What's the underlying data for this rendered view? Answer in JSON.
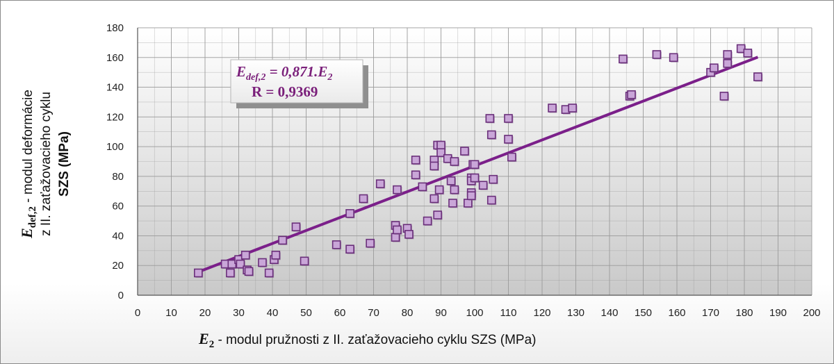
{
  "chart_data": {
    "type": "scatter",
    "x_ticks": [
      "0",
      "10",
      "20",
      "30",
      "40",
      "50",
      "60",
      "70",
      "80",
      "90",
      "100",
      "110",
      "120",
      "130",
      "140",
      "150",
      "160",
      "170",
      "180",
      "190",
      "200"
    ],
    "y_ticks": [
      "0",
      "20",
      "40",
      "60",
      "80",
      "100",
      "120",
      "140",
      "160",
      "180"
    ],
    "xlim": [
      0,
      200
    ],
    "ylim": [
      0,
      180
    ],
    "grid": true,
    "xlabel": {
      "symbol": "E",
      "sub": "2",
      "rest": " - modul  pružnosti z II. zaťažovacieho cyklu SZS (MPa)"
    },
    "ylabel": {
      "symbol": "E",
      "sub": "def,2",
      "line1_rest": " - modul deformácie",
      "line2": "z II. zaťažovacieho cyklu",
      "line3": "SZS   (MPa)"
    },
    "annotation": {
      "eq_symbol": "E",
      "eq_sub": "def,2",
      "eq_rest": " = 0,871.E",
      "eq_sub2": "2",
      "r_text": "R = 0,9369"
    },
    "trendline": {
      "slope": 0.871,
      "x_start": 18,
      "x_end": 184
    },
    "colors": {
      "marker_fill": "#c9a6d8",
      "marker_stroke": "#6a2f7a",
      "trendline": "#7b1f8a",
      "grid": "#9a9a9a",
      "annotation_text": "#7a1f7a"
    },
    "points": [
      [
        18,
        15
      ],
      [
        26,
        21
      ],
      [
        27.5,
        15
      ],
      [
        28,
        21
      ],
      [
        30,
        24
      ],
      [
        30.5,
        21
      ],
      [
        32,
        27
      ],
      [
        32.5,
        17
      ],
      [
        33,
        16
      ],
      [
        37,
        22
      ],
      [
        39,
        15
      ],
      [
        40.5,
        24
      ],
      [
        41,
        27
      ],
      [
        43,
        37
      ],
      [
        47,
        46
      ],
      [
        49.5,
        23
      ],
      [
        59,
        34
      ],
      [
        63,
        31
      ],
      [
        63,
        55
      ],
      [
        67,
        65
      ],
      [
        69,
        35
      ],
      [
        72,
        75
      ],
      [
        76.5,
        47
      ],
      [
        76.5,
        39
      ],
      [
        77,
        71
      ],
      [
        77,
        44
      ],
      [
        80,
        45
      ],
      [
        80.5,
        41
      ],
      [
        82.5,
        91
      ],
      [
        82.5,
        81
      ],
      [
        84.5,
        73
      ],
      [
        86,
        50
      ],
      [
        88,
        91
      ],
      [
        88,
        87
      ],
      [
        88,
        65
      ],
      [
        89,
        101
      ],
      [
        89,
        54
      ],
      [
        89.5,
        71
      ],
      [
        90,
        101
      ],
      [
        90,
        96
      ],
      [
        92,
        92
      ],
      [
        93,
        77
      ],
      [
        93.5,
        62
      ],
      [
        94,
        71
      ],
      [
        94,
        90
      ],
      [
        97,
        97
      ],
      [
        98,
        62
      ],
      [
        99,
        69
      ],
      [
        99,
        67
      ],
      [
        99,
        79
      ],
      [
        99,
        77
      ],
      [
        99.5,
        88
      ],
      [
        100,
        88
      ],
      [
        100,
        79
      ],
      [
        102.5,
        74
      ],
      [
        104.5,
        119
      ],
      [
        105,
        108
      ],
      [
        105,
        64
      ],
      [
        105.5,
        78
      ],
      [
        110,
        119
      ],
      [
        110,
        105
      ],
      [
        111,
        93
      ],
      [
        123,
        126
      ],
      [
        127,
        125
      ],
      [
        129,
        126
      ],
      [
        144,
        159
      ],
      [
        146,
        134
      ],
      [
        146.5,
        135
      ],
      [
        154,
        162
      ],
      [
        159,
        160
      ],
      [
        170,
        150
      ],
      [
        171,
        153
      ],
      [
        174,
        134
      ],
      [
        175,
        162
      ],
      [
        175,
        156
      ],
      [
        179,
        166
      ],
      [
        181,
        163
      ],
      [
        184,
        147
      ]
    ]
  }
}
